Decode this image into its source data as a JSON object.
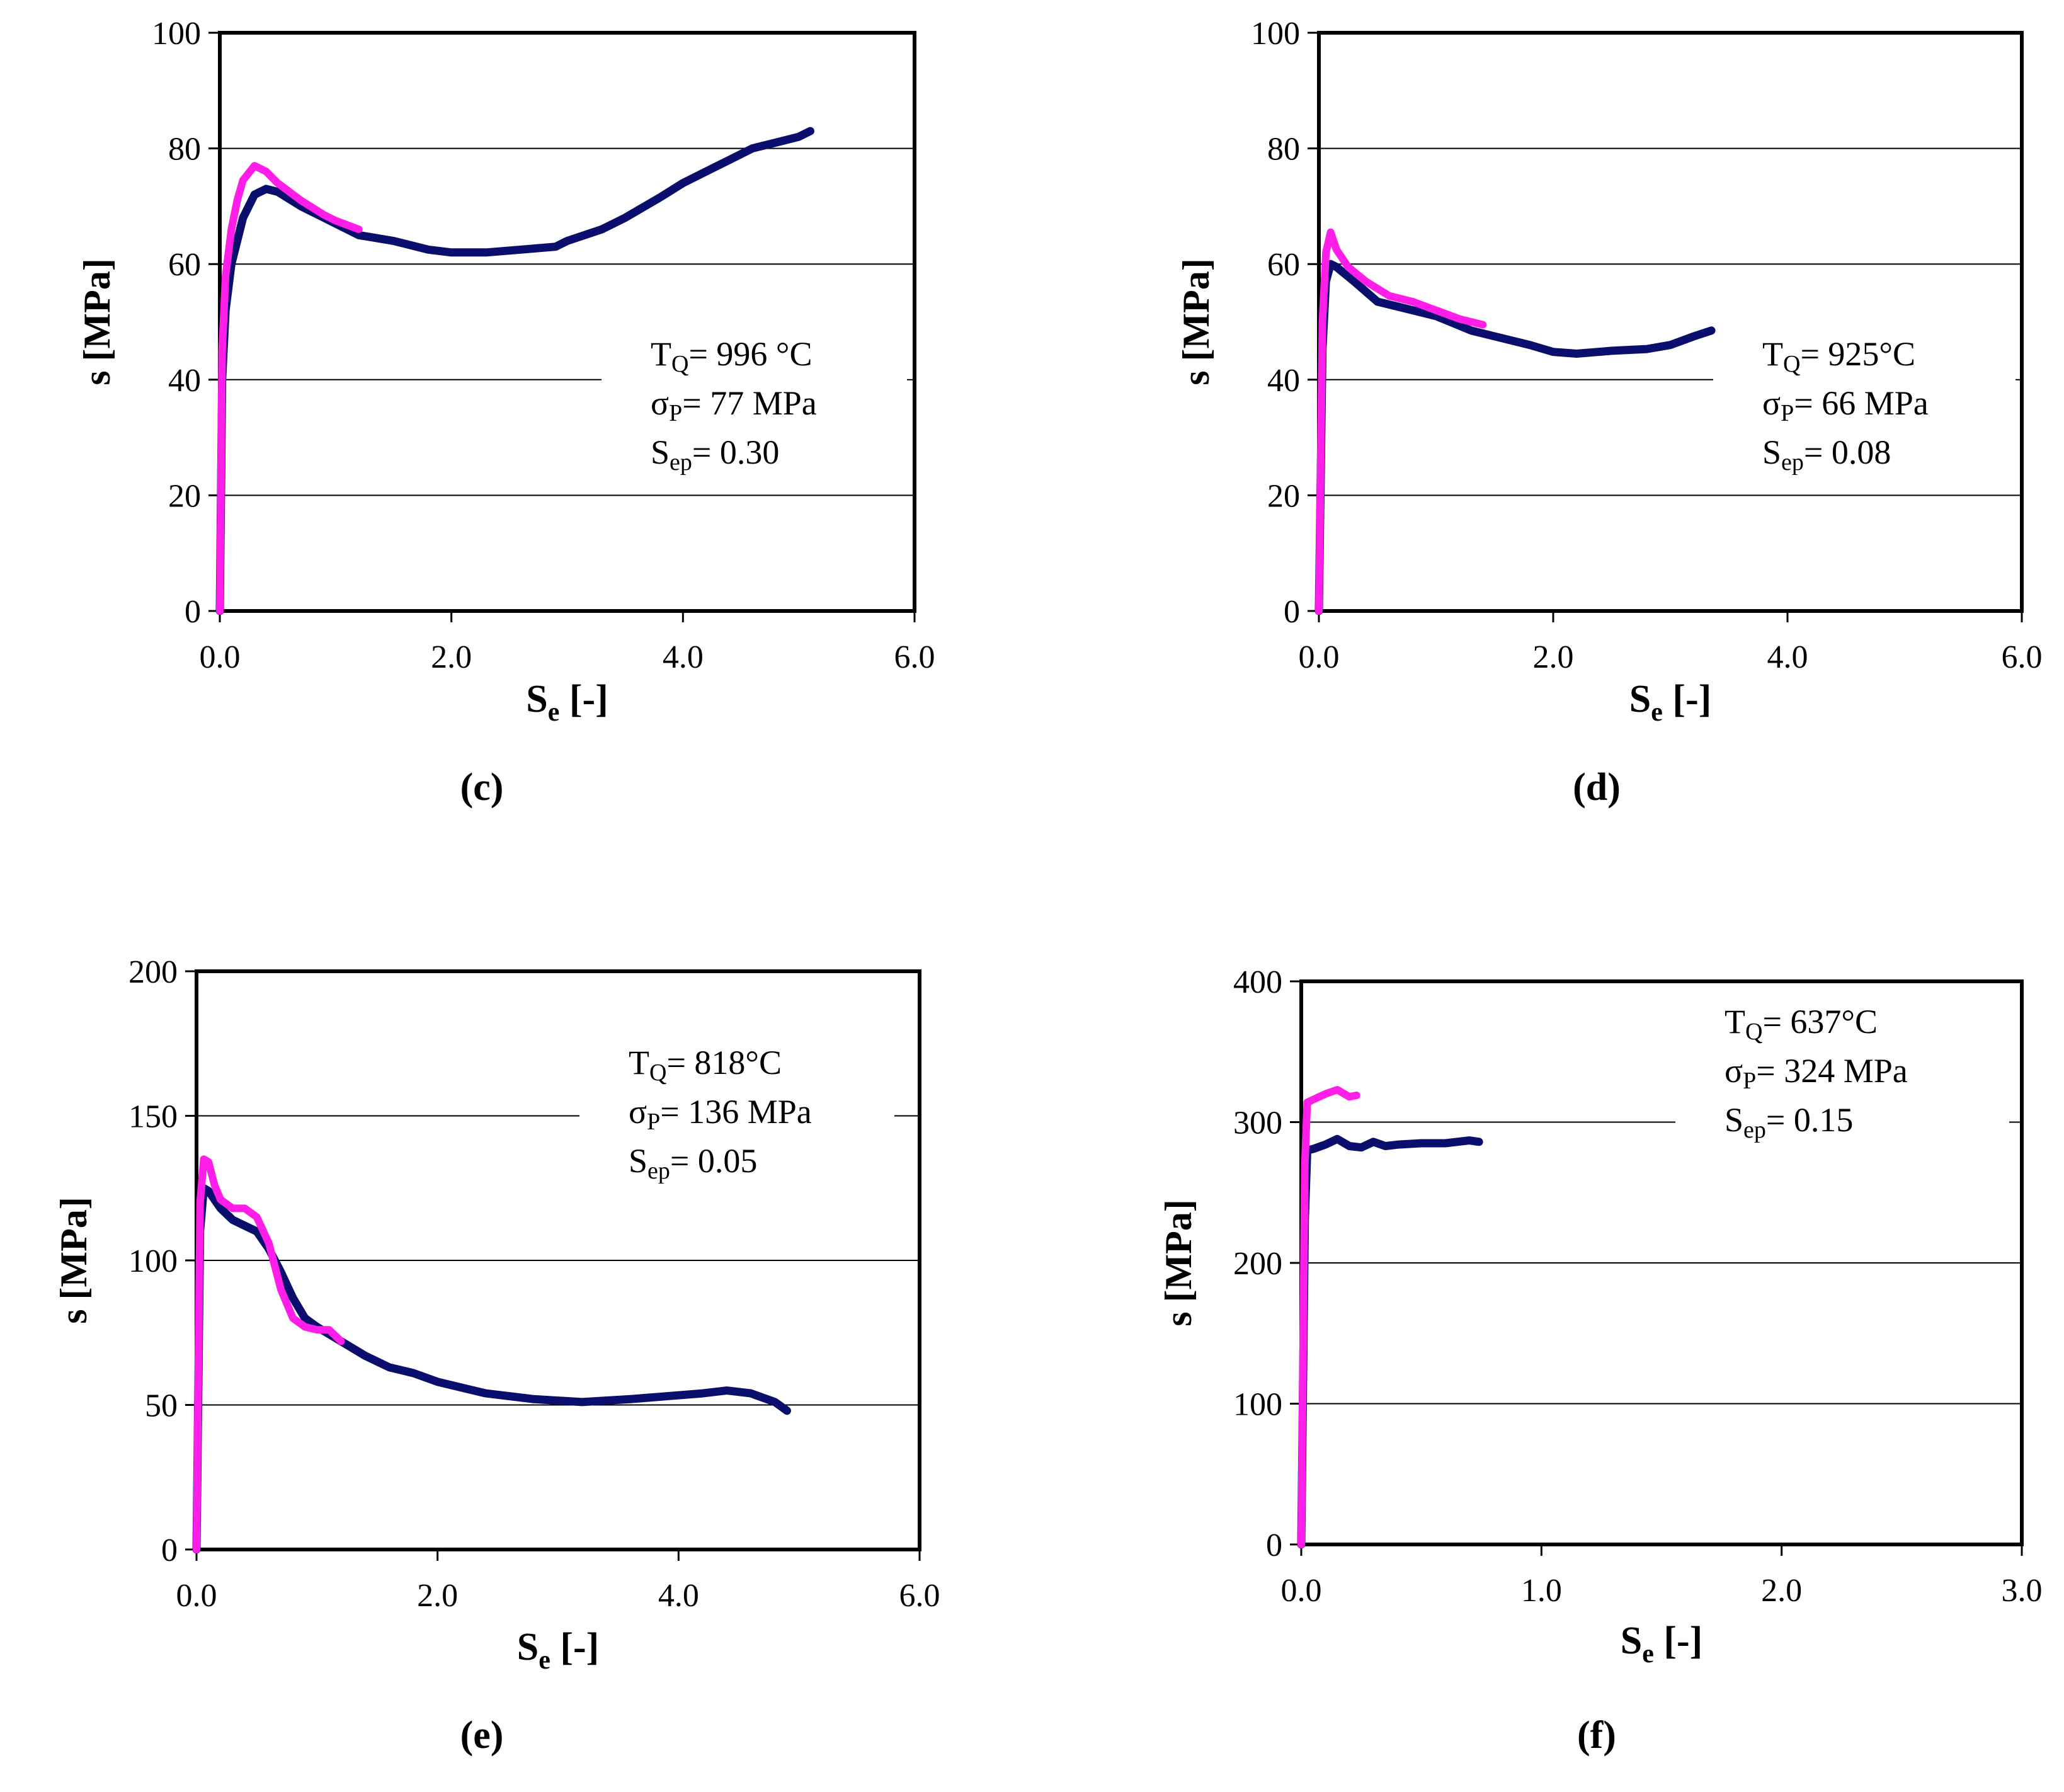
{
  "colors": {
    "measured": "#0a0f6e",
    "model": "#ff1de8",
    "grid": "#000000"
  },
  "chart_data": [
    {
      "type": "line",
      "panel_label": "(c)",
      "ylabel": "s [MPa]",
      "xlabel_main": "S",
      "xlabel_sub": "e",
      "xlabel_tail": " [-]",
      "xlim": [
        0,
        6
      ],
      "ylim": [
        0,
        100
      ],
      "xticks": [
        "0.0",
        "2.0",
        "4.0",
        "6.0"
      ],
      "yticks": [
        "0",
        "20",
        "40",
        "60",
        "80",
        "100"
      ],
      "gridlines": [
        20,
        40,
        60,
        80
      ],
      "annotation": [
        {
          "main": "T",
          "sub": "Q",
          "rest": "= 996 °C"
        },
        {
          "main": "σ",
          "sub": "P",
          "rest": "= 77 MPa"
        },
        {
          "main": "S",
          "sub": "ep",
          "rest": "= 0.30"
        }
      ],
      "series": [
        {
          "role": "measured",
          "x": [
            0.0,
            0.02,
            0.05,
            0.1,
            0.2,
            0.3,
            0.4,
            0.5,
            0.7,
            1.0,
            1.2,
            1.5,
            1.8,
            2.0,
            2.3,
            2.6,
            2.9,
            3.0,
            3.3,
            3.5,
            3.8,
            4.0,
            4.3,
            4.6,
            4.8,
            5.0,
            5.1
          ],
          "y": [
            0,
            40,
            52,
            60,
            68,
            72,
            73,
            72.5,
            70,
            67,
            65,
            64,
            62.5,
            62,
            62,
            62.5,
            63,
            64,
            66,
            68,
            71.5,
            74,
            77,
            80,
            81,
            82,
            83
          ]
        },
        {
          "role": "model",
          "x": [
            0.0,
            0.02,
            0.05,
            0.1,
            0.15,
            0.2,
            0.3,
            0.4,
            0.5,
            0.7,
            0.9,
            1.0,
            1.2
          ],
          "y": [
            0,
            45,
            58,
            66,
            71,
            74.5,
            77,
            76,
            74,
            71,
            68.5,
            67.5,
            66
          ]
        }
      ]
    },
    {
      "type": "line",
      "panel_label": "(d)",
      "ylabel": "s [MPa]",
      "xlabel_main": "S",
      "xlabel_sub": "e",
      "xlabel_tail": " [-]",
      "xlim": [
        0,
        6
      ],
      "ylim": [
        0,
        100
      ],
      "xticks": [
        "0.0",
        "2.0",
        "4.0",
        "6.0"
      ],
      "yticks": [
        "0",
        "20",
        "40",
        "60",
        "80",
        "100"
      ],
      "gridlines": [
        20,
        40,
        60,
        80
      ],
      "annotation": [
        {
          "main": "T",
          "sub": "Q",
          "rest": "= 925°C"
        },
        {
          "main": "σ",
          "sub": "P",
          "rest": "= 66 MPa"
        },
        {
          "main": "S",
          "sub": "ep",
          "rest": "= 0.08"
        }
      ],
      "series": [
        {
          "role": "measured",
          "x": [
            0.0,
            0.03,
            0.06,
            0.1,
            0.15,
            0.3,
            0.5,
            0.7,
            1.0,
            1.3,
            1.5,
            1.8,
            2.0,
            2.2,
            2.5,
            2.8,
            3.0,
            3.2,
            3.35
          ],
          "y": [
            0,
            45,
            57,
            60,
            59.5,
            57,
            53.5,
            52.5,
            51,
            48.5,
            47.5,
            46,
            44.8,
            44.5,
            45,
            45.3,
            46,
            47.5,
            48.5
          ]
        },
        {
          "role": "model",
          "x": [
            0.0,
            0.03,
            0.06,
            0.1,
            0.15,
            0.25,
            0.4,
            0.6,
            0.8,
            1.0,
            1.2,
            1.4
          ],
          "y": [
            0,
            50,
            62,
            65.5,
            62.5,
            59.5,
            57,
            54.5,
            53.5,
            52,
            50.5,
            49.5
          ]
        }
      ]
    },
    {
      "type": "line",
      "panel_label": "(e)",
      "ylabel": "s [MPa]",
      "xlabel_main": "S",
      "xlabel_sub": "e",
      "xlabel_tail": " [-]",
      "xlim": [
        0,
        6
      ],
      "ylim": [
        0,
        200
      ],
      "xticks": [
        "0.0",
        "2.0",
        "4.0",
        "6.0"
      ],
      "yticks": [
        "0",
        "50",
        "100",
        "150",
        "200"
      ],
      "gridlines": [
        50,
        100,
        150
      ],
      "annotation": [
        {
          "main": "T",
          "sub": "Q",
          "rest": "= 818°C"
        },
        {
          "main": "σ",
          "sub": "P",
          "rest": "= 136 MPa"
        },
        {
          "main": "S",
          "sub": "ep",
          "rest": "= 0.05"
        }
      ],
      "series": [
        {
          "role": "measured",
          "x": [
            0.0,
            0.03,
            0.06,
            0.1,
            0.2,
            0.3,
            0.4,
            0.5,
            0.6,
            0.7,
            0.8,
            0.9,
            1.0,
            1.2,
            1.4,
            1.6,
            1.8,
            2.0,
            2.4,
            2.8,
            3.2,
            3.6,
            3.9,
            4.2,
            4.4,
            4.6,
            4.8,
            4.9
          ],
          "y": [
            0,
            110,
            125,
            124,
            118,
            114,
            112,
            110,
            104,
            96,
            87,
            80,
            77,
            72,
            67,
            63,
            61,
            58,
            54,
            52,
            51,
            52,
            53,
            54,
            55,
            54,
            51,
            48
          ]
        },
        {
          "role": "model",
          "x": [
            0.0,
            0.03,
            0.06,
            0.1,
            0.15,
            0.2,
            0.3,
            0.4,
            0.5,
            0.6,
            0.7,
            0.8,
            0.9,
            1.0,
            1.1,
            1.2
          ],
          "y": [
            0,
            120,
            135,
            134,
            126,
            121,
            118,
            118,
            115,
            106,
            90,
            80,
            77,
            76,
            76,
            72
          ]
        }
      ]
    },
    {
      "type": "line",
      "panel_label": "(f)",
      "ylabel": "s [MPa]",
      "xlabel_main": "S",
      "xlabel_sub": "e",
      "xlabel_tail": " [-]",
      "xlim": [
        0,
        3
      ],
      "ylim": [
        0,
        400
      ],
      "xticks": [
        "0.0",
        "1.0",
        "2.0",
        "3.0"
      ],
      "yticks": [
        "0",
        "100",
        "200",
        "300",
        "400"
      ],
      "gridlines": [
        100,
        200,
        300
      ],
      "annotation": [
        {
          "main": "T",
          "sub": "Q",
          "rest": "= 637°C"
        },
        {
          "main": "σ",
          "sub": "P",
          "rest": "= 324 MPa"
        },
        {
          "main": "S",
          "sub": "ep",
          "rest": "= 0.15"
        }
      ],
      "series": [
        {
          "role": "measured",
          "x": [
            0.0,
            0.015,
            0.025,
            0.05,
            0.1,
            0.15,
            0.2,
            0.25,
            0.3,
            0.35,
            0.4,
            0.5,
            0.6,
            0.7,
            0.74
          ],
          "y": [
            0,
            230,
            280,
            281,
            284,
            288,
            283,
            282,
            286,
            283,
            284,
            285,
            285,
            287,
            286
          ]
        },
        {
          "role": "model",
          "x": [
            0.0,
            0.015,
            0.025,
            0.05,
            0.1,
            0.15,
            0.2,
            0.23
          ],
          "y": [
            0,
            270,
            314,
            316,
            320,
            323,
            318,
            319
          ]
        }
      ]
    }
  ]
}
